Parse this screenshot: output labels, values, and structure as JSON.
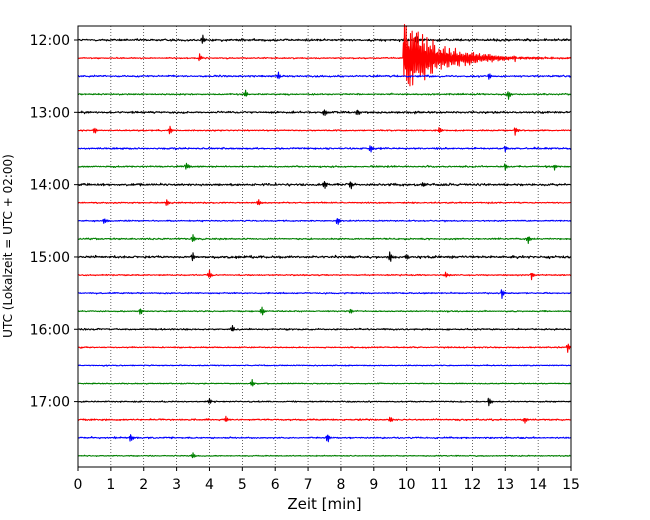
{
  "chart_data": {
    "type": "line",
    "title": "",
    "xlabel": "Zeit  [min]",
    "ylabel": "UTC (Lokalzeit = UTC + 02:00)",
    "xlim": [
      0,
      15
    ],
    "x_ticks": [
      0,
      1,
      2,
      3,
      4,
      5,
      6,
      7,
      8,
      9,
      10,
      11,
      12,
      13,
      14,
      15
    ],
    "y_tick_labels": [
      "12:00",
      "13:00",
      "14:00",
      "15:00",
      "16:00",
      "17:00"
    ],
    "grid": "vertical dotted lines at each minute",
    "trace_interval_minutes": 15,
    "trace_start": "12:00",
    "trace_count": 24,
    "trace_colors": [
      "#000000",
      "#ff0000",
      "#0000ff",
      "#008000"
    ],
    "series": [
      {
        "start": "12:00",
        "color": "#000000",
        "noise": 0.9,
        "events": [
          {
            "x": 3.8,
            "amp": 0.8
          },
          {
            "x": 10.3,
            "amp": 0.9
          }
        ]
      },
      {
        "start": "12:15",
        "color": "#ff0000",
        "noise": 0.5,
        "events": [
          {
            "x": 3.7,
            "amp": 0.7
          },
          {
            "x": 9.9,
            "amp": 4.5,
            "coda": 3.5
          },
          {
            "x": 13.3,
            "amp": 0.8
          }
        ]
      },
      {
        "start": "12:30",
        "color": "#0000ff",
        "noise": 0.7,
        "events": [
          {
            "x": 6.1,
            "amp": 0.7
          },
          {
            "x": 12.5,
            "amp": 0.6
          }
        ]
      },
      {
        "start": "12:45",
        "color": "#008000",
        "noise": 0.6,
        "events": [
          {
            "x": 5.1,
            "amp": 0.7
          },
          {
            "x": 13.1,
            "amp": 0.9
          }
        ]
      },
      {
        "start": "13:00",
        "color": "#000000",
        "noise": 0.8,
        "events": [
          {
            "x": 7.5,
            "amp": 0.7
          },
          {
            "x": 8.5,
            "amp": 0.7
          }
        ]
      },
      {
        "start": "13:15",
        "color": "#ff0000",
        "noise": 0.5,
        "events": [
          {
            "x": 0.5,
            "amp": 0.6
          },
          {
            "x": 2.8,
            "amp": 0.8
          },
          {
            "x": 11.0,
            "amp": 0.7
          },
          {
            "x": 13.3,
            "amp": 0.8
          }
        ]
      },
      {
        "start": "13:30",
        "color": "#0000ff",
        "noise": 0.7,
        "events": [
          {
            "x": 8.9,
            "amp": 0.8
          },
          {
            "x": 13.0,
            "amp": 0.5
          }
        ]
      },
      {
        "start": "13:45",
        "color": "#008000",
        "noise": 0.6,
        "events": [
          {
            "x": 3.3,
            "amp": 0.7
          },
          {
            "x": 13.0,
            "amp": 0.7
          },
          {
            "x": 14.5,
            "amp": 0.6
          }
        ]
      },
      {
        "start": "14:00",
        "color": "#000000",
        "noise": 0.9,
        "events": [
          {
            "x": 7.5,
            "amp": 0.7
          },
          {
            "x": 8.3,
            "amp": 0.8
          },
          {
            "x": 10.5,
            "amp": 0.6
          }
        ]
      },
      {
        "start": "14:15",
        "color": "#ff0000",
        "noise": 0.5,
        "events": [
          {
            "x": 2.7,
            "amp": 0.7
          },
          {
            "x": 5.5,
            "amp": 0.6
          }
        ]
      },
      {
        "start": "14:30",
        "color": "#0000ff",
        "noise": 0.5,
        "events": [
          {
            "x": 0.8,
            "amp": 0.6
          },
          {
            "x": 7.9,
            "amp": 0.8
          }
        ]
      },
      {
        "start": "14:45",
        "color": "#008000",
        "noise": 0.6,
        "events": [
          {
            "x": 3.5,
            "amp": 0.7
          },
          {
            "x": 13.7,
            "amp": 0.8
          }
        ]
      },
      {
        "start": "15:00",
        "color": "#000000",
        "noise": 1.0,
        "events": [
          {
            "x": 3.5,
            "amp": 0.7
          },
          {
            "x": 9.5,
            "amp": 1.0
          },
          {
            "x": 10.0,
            "amp": 0.6
          }
        ]
      },
      {
        "start": "15:15",
        "color": "#ff0000",
        "noise": 0.5,
        "events": [
          {
            "x": 4.0,
            "amp": 0.8
          },
          {
            "x": 11.2,
            "amp": 0.6
          },
          {
            "x": 13.8,
            "amp": 0.8
          }
        ]
      },
      {
        "start": "15:30",
        "color": "#0000ff",
        "noise": 0.5,
        "events": [
          {
            "x": 12.9,
            "amp": 0.9
          }
        ]
      },
      {
        "start": "15:45",
        "color": "#008000",
        "noise": 0.5,
        "events": [
          {
            "x": 1.9,
            "amp": 0.7
          },
          {
            "x": 5.6,
            "amp": 0.8
          },
          {
            "x": 8.3,
            "amp": 0.5
          }
        ]
      },
      {
        "start": "16:00",
        "color": "#000000",
        "noise": 0.6,
        "events": [
          {
            "x": 4.7,
            "amp": 0.6
          }
        ]
      },
      {
        "start": "16:15",
        "color": "#ff0000",
        "noise": 0.5,
        "events": [
          {
            "x": 14.9,
            "amp": 0.9
          }
        ]
      },
      {
        "start": "16:30",
        "color": "#0000ff",
        "noise": 0.4,
        "events": []
      },
      {
        "start": "16:45",
        "color": "#008000",
        "noise": 0.4,
        "events": [
          {
            "x": 5.3,
            "amp": 0.7
          }
        ]
      },
      {
        "start": "17:00",
        "color": "#000000",
        "noise": 0.5,
        "events": [
          {
            "x": 4.0,
            "amp": 0.5
          },
          {
            "x": 12.5,
            "amp": 0.8
          }
        ]
      },
      {
        "start": "17:15",
        "color": "#ff0000",
        "noise": 0.6,
        "events": [
          {
            "x": 4.5,
            "amp": 0.6
          },
          {
            "x": 9.5,
            "amp": 0.6
          },
          {
            "x": 13.6,
            "amp": 0.6
          }
        ]
      },
      {
        "start": "17:30",
        "color": "#0000ff",
        "noise": 0.6,
        "events": [
          {
            "x": 1.6,
            "amp": 0.8
          },
          {
            "x": 7.6,
            "amp": 0.9
          }
        ]
      },
      {
        "start": "17:45",
        "color": "#008000",
        "noise": 0.4,
        "events": [
          {
            "x": 3.5,
            "amp": 0.6
          }
        ]
      }
    ]
  }
}
